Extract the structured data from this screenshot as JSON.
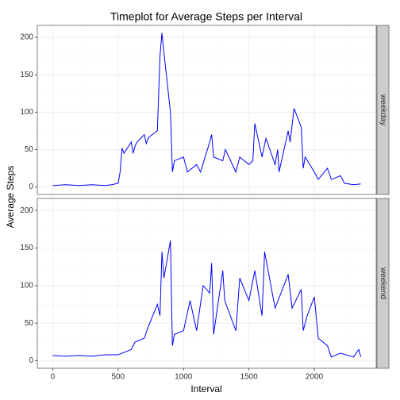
{
  "chart_data": {
    "type": "line",
    "title": "Timeplot for Average Steps per Interval",
    "xlabel": "Interval",
    "ylabel": "Average Steps",
    "color": "#0000ff",
    "grid": true,
    "xlim": [
      -118,
      2473
    ],
    "xticks": [
      0,
      500,
      1000,
      1500,
      2000
    ],
    "x_minor_ticks": [
      250,
      750,
      1250,
      1750,
      2250
    ],
    "ylim": [
      -10,
      216
    ],
    "yticks": [
      0,
      50,
      100,
      150,
      200
    ],
    "y_minor_ticks": [
      25,
      75,
      125,
      175
    ],
    "facets": [
      {
        "name": "weekday",
        "x": [
          0,
          100,
          200,
          300,
          400,
          450,
          500,
          515,
          530,
          545,
          600,
          615,
          630,
          645,
          700,
          715,
          730,
          745,
          800,
          820,
          835,
          850,
          900,
          915,
          930,
          1000,
          1030,
          1100,
          1130,
          1200,
          1215,
          1230,
          1300,
          1320,
          1400,
          1430,
          1500,
          1530,
          1545,
          1600,
          1630,
          1700,
          1720,
          1730,
          1800,
          1815,
          1845,
          1900,
          1915,
          1930,
          2000,
          2030,
          2100,
          2130,
          2200,
          2230,
          2300,
          2355
        ],
        "values": [
          2,
          3,
          2,
          3,
          2,
          3,
          5,
          20,
          52,
          45,
          60,
          45,
          55,
          60,
          70,
          58,
          65,
          68,
          75,
          175,
          206,
          180,
          100,
          20,
          35,
          40,
          20,
          30,
          20,
          60,
          70,
          40,
          35,
          50,
          20,
          40,
          30,
          35,
          85,
          40,
          65,
          30,
          50,
          20,
          75,
          60,
          105,
          80,
          25,
          40,
          20,
          10,
          25,
          10,
          15,
          5,
          3,
          4
        ]
      },
      {
        "name": "weekend",
        "x": [
          0,
          100,
          200,
          300,
          400,
          500,
          530,
          600,
          630,
          700,
          730,
          800,
          820,
          835,
          850,
          900,
          915,
          930,
          1000,
          1050,
          1100,
          1150,
          1200,
          1215,
          1230,
          1300,
          1315,
          1400,
          1430,
          1500,
          1545,
          1600,
          1620,
          1700,
          1745,
          1800,
          1830,
          1900,
          1915,
          1945,
          2000,
          2030,
          2100,
          2130,
          2200,
          2300,
          2340,
          2355
        ],
        "values": [
          7,
          6,
          7,
          6,
          8,
          8,
          10,
          15,
          25,
          30,
          45,
          75,
          60,
          145,
          110,
          160,
          20,
          35,
          40,
          80,
          40,
          100,
          90,
          130,
          35,
          120,
          80,
          40,
          110,
          80,
          120,
          60,
          145,
          70,
          90,
          115,
          70,
          95,
          40,
          60,
          85,
          30,
          20,
          5,
          10,
          5,
          15,
          5
        ]
      }
    ]
  }
}
